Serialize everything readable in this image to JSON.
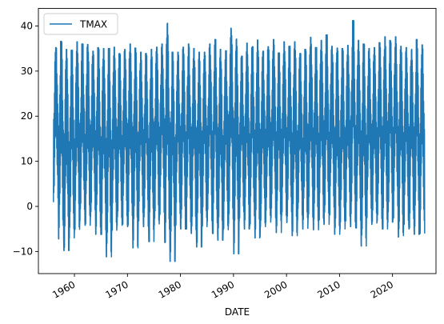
{
  "chart_data": {
    "type": "line",
    "title": "",
    "xlabel": "DATE",
    "ylabel": "",
    "x_range": [
      1953.2,
      2028.2
    ],
    "ylim": [
      -14.9,
      43.9
    ],
    "x_ticks": [
      {
        "value": 1960,
        "label": "1960"
      },
      {
        "value": 1970,
        "label": "1970"
      },
      {
        "value": 1980,
        "label": "1980"
      },
      {
        "value": 1990,
        "label": "1990"
      },
      {
        "value": 2000,
        "label": "2000"
      },
      {
        "value": 2010,
        "label": "2010"
      },
      {
        "value": 2020,
        "label": "2020"
      }
    ],
    "y_ticks": [
      {
        "value": -10,
        "label": "−10"
      },
      {
        "value": 0,
        "label": "0"
      },
      {
        "value": 10,
        "label": "10"
      },
      {
        "value": 20,
        "label": "20"
      },
      {
        "value": 30,
        "label": "30"
      },
      {
        "value": 40,
        "label": "40"
      }
    ],
    "legend_position": "top-left",
    "grid": false,
    "series": [
      {
        "name": "TMAX",
        "color": "#1f77b4",
        "x_start": 1956.0,
        "x_end": 2026.1,
        "annual_peaks": [
          35.2,
          36.6,
          34.8,
          34.6,
          36.5,
          36.0,
          35.9,
          34.4,
          35.2,
          35.0,
          35.0,
          35.3,
          33.9,
          34.8,
          36.0,
          35.1,
          34.2,
          33.9,
          34.8,
          35.3,
          36.0,
          40.6,
          34.2,
          34.2,
          35.3,
          36.0,
          35.0,
          34.2,
          34.2,
          36.0,
          37.0,
          34.8,
          34.5,
          39.5,
          37.1,
          33.3,
          36.2,
          35.4,
          36.9,
          34.4,
          35.4,
          37.0,
          34.0,
          36.5,
          35.5,
          36.5,
          33.9,
          34.8,
          37.5,
          35.2,
          36.8,
          38.0,
          35.5,
          35.1,
          35.0,
          35.7,
          41.2,
          36.8,
          36.0,
          35.0,
          35.2,
          36.3,
          37.6,
          36.8,
          37.6,
          35.5,
          35.2,
          34.8,
          37.0,
          35.8
        ],
        "annual_troughs": [
          1.0,
          -7.2,
          -9.8,
          -7.0,
          -5.1,
          -3.2,
          -4.2,
          -2.3,
          -6.2,
          -6.2,
          -11.2,
          -5.3,
          -4.2,
          -4.0,
          -4.5,
          -9.2,
          -3.2,
          -4.5,
          -7.8,
          -4.2,
          -2.0,
          -8.0,
          -12.2,
          -4.2,
          -5.0,
          -5.0,
          -6.0,
          -9.0,
          -4.5,
          -3.2,
          -6.0,
          -7.5,
          -5.2,
          -3.8,
          -10.5,
          -3.2,
          -5.0,
          -4.2,
          -7.0,
          -4.5,
          -3.5,
          -2.5,
          -5.8,
          -2.0,
          -3.6,
          -6.5,
          -3.0,
          -5.0,
          -2.5,
          -5.2,
          -3.0,
          -4.0,
          -2.0,
          -6.2,
          -5.0,
          -3.2,
          -4.5,
          -4.8,
          -8.8,
          -2.5,
          -4.0,
          -3.2,
          -5.0,
          -3.5,
          -2.6,
          -6.8,
          -4.0,
          -5.0,
          -6.2,
          -6.0
        ]
      }
    ]
  }
}
